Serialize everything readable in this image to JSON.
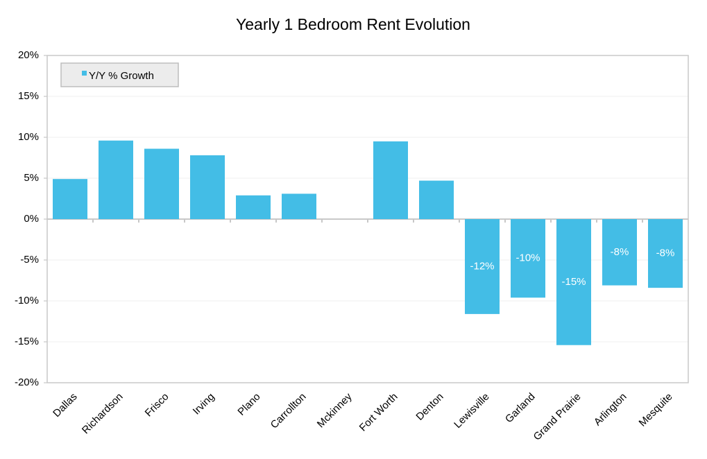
{
  "chart_data": {
    "type": "bar",
    "title": "Yearly 1 Bedroom Rent Evolution",
    "categories": [
      "Dallas",
      "Richardson",
      "Frisco",
      "Irving",
      "Plano",
      "Carrollton",
      "Mckinney",
      "Fort Worth",
      "Denton",
      "Lewisville",
      "Garland",
      "Grand Prairie",
      "Arlington",
      "Mesquite"
    ],
    "series": [
      {
        "name": "Y/Y % Growth",
        "color": "#43bde6",
        "values": [
          4.9,
          9.6,
          8.6,
          7.8,
          2.9,
          3.1,
          0,
          9.5,
          4.7,
          -11.6,
          -9.6,
          -15.4,
          -8.1,
          -8.4
        ],
        "value_labels": [
          null,
          null,
          null,
          null,
          null,
          null,
          null,
          null,
          null,
          "-12%",
          "-10%",
          "-15%",
          "-8%",
          "-8%"
        ]
      }
    ],
    "ylim": [
      -20,
      20
    ],
    "yticks": [
      {
        "value": -20,
        "label": "-20%"
      },
      {
        "value": -15,
        "label": "-15%"
      },
      {
        "value": -10,
        "label": "-10%"
      },
      {
        "value": -5,
        "label": "-5%"
      },
      {
        "value": 0,
        "label": "0%"
      },
      {
        "value": 5,
        "label": "5%"
      },
      {
        "value": 10,
        "label": "10%"
      },
      {
        "value": 15,
        "label": "15%"
      },
      {
        "value": 20,
        "label": "20%"
      }
    ],
    "grid": true,
    "legend": "top-left"
  }
}
